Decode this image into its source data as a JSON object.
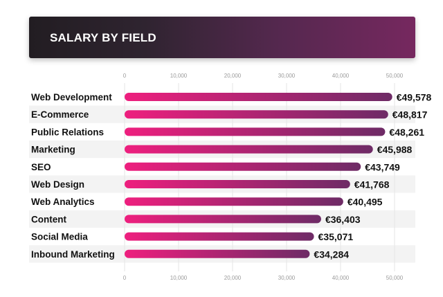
{
  "header": {
    "title": "SALARY BY FIELD"
  },
  "colors": {
    "bar_start": "#ee1f7e",
    "bar_end": "#6e2b66",
    "band": "#f3f3f3",
    "grid": "#e6e6e6"
  },
  "chart_data": {
    "type": "bar",
    "orientation": "horizontal",
    "title": "SALARY BY FIELD",
    "categories": [
      "Web Development",
      "E-Commerce",
      "Public Relations",
      "Marketing",
      "SEO",
      "Web Design",
      "Web Analytics",
      "Content",
      "Social Media",
      "Inbound Marketing"
    ],
    "values": [
      49578,
      48817,
      48261,
      45988,
      43749,
      41768,
      40495,
      36403,
      35071,
      34284
    ],
    "value_labels": [
      "€49,578",
      "€48,817",
      "€48,261",
      "€45,988",
      "€43,749",
      "€41,768",
      "€40,495",
      "€36,403",
      "€35,071",
      "€34,284"
    ],
    "ticks": [
      0,
      10000,
      20000,
      30000,
      40000,
      50000
    ],
    "tick_labels": [
      "0",
      "10,000",
      "20,000",
      "30,000",
      "40,000",
      "50,000"
    ],
    "xlim": [
      0,
      54000
    ],
    "xlabel": "",
    "ylabel": "",
    "grid": true,
    "tick_positions": "top-and-bottom"
  }
}
